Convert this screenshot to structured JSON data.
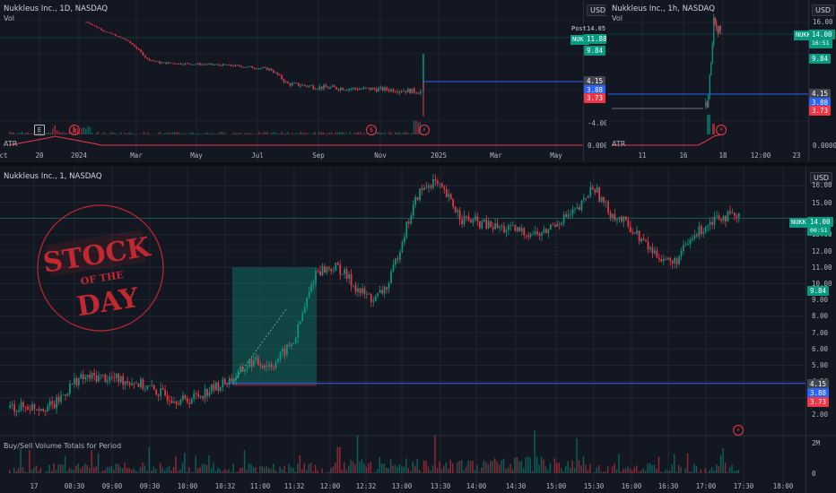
{
  "colors": {
    "background": "#131722",
    "grid": "#2a2e39",
    "up": "#089981",
    "down": "#f23645",
    "blue_line": "#2962ff",
    "text": "#b2b5be",
    "stamp_red": "#c2282f"
  },
  "top_left_chart": {
    "title": "Nukkleus Inc., 1D, NASDAQ",
    "subtitle": "Vol",
    "indicator": "ATR",
    "currency": "USD",
    "post_label": "Post",
    "post_price": "14.05",
    "ticker": "NUKK",
    "ticker_price": "11.88",
    "price_boxes": [
      {
        "text": "9.84",
        "color": "green"
      },
      {
        "text": "4.15",
        "color": "grey"
      },
      {
        "text": "3.88",
        "color": "blue"
      },
      {
        "text": "3.73",
        "color": "red"
      }
    ],
    "y_ticks": [
      "-4.00",
      "0.0000"
    ],
    "x_ticks": [
      "ct",
      "20",
      "2024",
      "Mar",
      "May",
      "Jul",
      "Sep",
      "Nov",
      "2025",
      "Mar",
      "May"
    ],
    "markers": [
      "E",
      "$",
      "$",
      "⚡"
    ]
  },
  "top_right_chart": {
    "title": "Nukkleus Inc., 1h, NASDAQ",
    "subtitle": "Vol",
    "indicator": "ATR",
    "currency": "USD",
    "ticker": "NUKK",
    "ticker_price": "14.00",
    "ticker_countdown": "16:51",
    "price_boxes": [
      {
        "text": "9.84",
        "color": "green"
      },
      {
        "text": "4.15",
        "color": "grey"
      },
      {
        "text": "3.88",
        "color": "blue"
      },
      {
        "text": "3.73",
        "color": "red"
      }
    ],
    "y_ticks": [
      "16.00",
      "0.0000"
    ],
    "x_ticks": [
      "11",
      "16",
      "18",
      "12:00",
      "23"
    ],
    "markers": [
      "⚡"
    ]
  },
  "main_chart": {
    "title": "Nukkleus Inc., 1, NASDAQ",
    "currency": "USD",
    "ticker": "NUKK",
    "ticker_price": "14.00",
    "ticker_countdown": "00:51",
    "y_ticks": [
      "16.00",
      "15.00",
      "13.00",
      "12.00",
      "11.00",
      "10.00",
      "9.00",
      "8.00",
      "7.00",
      "6.00",
      "5.00",
      "4.00",
      "3.00",
      "2.00"
    ],
    "price_boxes": [
      {
        "text": "9.84",
        "color": "green"
      },
      {
        "text": "4.15",
        "color": "grey"
      },
      {
        "text": "3.88",
        "color": "blue"
      },
      {
        "text": "3.73",
        "color": "red"
      }
    ],
    "x_ticks": [
      "17",
      "08:30",
      "09:00",
      "09:30",
      "10:00",
      "10:32",
      "11:00",
      "11:32",
      "12:00",
      "12:32",
      "13:00",
      "13:30",
      "14:00",
      "14:30",
      "15:00",
      "15:30",
      "16:00",
      "16:30",
      "17:00",
      "17:30",
      "18:00"
    ],
    "volume_title": "Buy/Sell Volume Totals for Period",
    "volume_ticks": [
      "2M",
      "0"
    ],
    "markers": [
      "⚡"
    ]
  },
  "stamp": {
    "line1": "STOCK",
    "line2": "OF THE",
    "line3": "DAY"
  },
  "chart_data": [
    {
      "type": "line",
      "title": "Nukkleus Inc., 1D, NASDAQ",
      "xlabel": "",
      "ylabel": "USD",
      "x": [
        "2023-10",
        "2023-12",
        "2024-01",
        "2024-03",
        "2024-05",
        "2024-07",
        "2024-09",
        "2024-11",
        "2024-12-18"
      ],
      "series": [
        {
          "values": [
            30,
            16,
            11,
            10,
            9.5,
            5.2,
            4.6,
            4.2,
            14.05
          ]
        }
      ]
    },
    {
      "type": "line",
      "title": "Nukkleus Inc., 1h, NASDAQ",
      "xlabel": "",
      "ylabel": "USD",
      "x": [
        "11",
        "16",
        "17",
        "18"
      ],
      "series": [
        {
          "values": [
            4.2,
            4.15,
            4.6,
            14.0
          ]
        }
      ]
    },
    {
      "type": "line",
      "title": "Nukkleus Inc., 1, NASDAQ",
      "xlabel": "",
      "ylabel": "USD",
      "ylim": [
        1.5,
        17
      ],
      "x": [
        "08:00",
        "08:30",
        "09:00",
        "09:30",
        "10:00",
        "10:32",
        "11:00",
        "11:15",
        "11:32",
        "12:00",
        "12:32",
        "12:45",
        "13:00",
        "13:30",
        "14:00",
        "14:30",
        "15:00",
        "15:15",
        "15:30",
        "16:00",
        "16:30",
        "16:45",
        "17:00",
        "17:15"
      ],
      "series": [
        {
          "values": [
            2.4,
            4.3,
            3.9,
            2.8,
            3.7,
            4.3,
            5.2,
            8.0,
            11.8,
            9.0,
            9.5,
            14.0,
            16.0,
            14.0,
            13.5,
            12.5,
            14.0,
            16.0,
            14.0,
            13.0,
            11.5,
            11.0,
            13.3,
            14.0
          ]
        }
      ],
      "hlines": [
        3.88
      ]
    }
  ]
}
